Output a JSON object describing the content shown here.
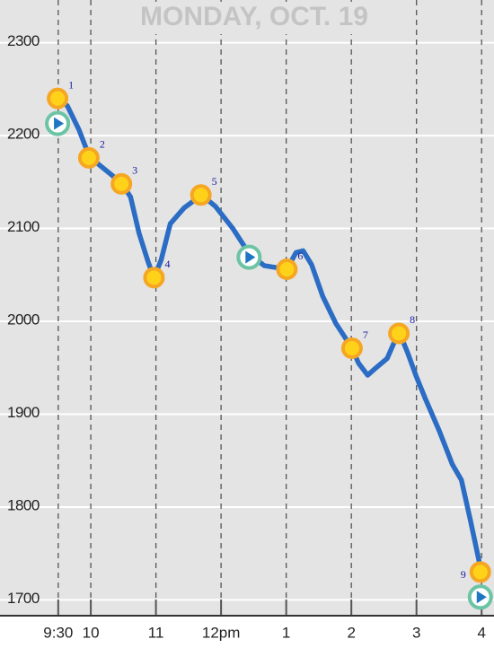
{
  "chart_data": {
    "type": "line",
    "title": "MONDAY, OCT. 19",
    "x": [
      9.5,
      9.64,
      9.82,
      9.98,
      10.19,
      10.47,
      10.61,
      10.74,
      10.88,
      10.97,
      11.08,
      11.22,
      11.43,
      11.7,
      11.91,
      12.18,
      12.43,
      12.66,
      13.01,
      13.15,
      13.26,
      13.39,
      13.56,
      13.76,
      14.01,
      14.11,
      14.25,
      14.38,
      14.55,
      14.73,
      14.86,
      15.0,
      15.14,
      15.35,
      15.55,
      15.69,
      15.83,
      15.96,
      15.99
    ],
    "series": [
      {
        "color": "#2b6cc4",
        "values": [
          2240,
          2232,
          2206,
          2177,
          2165,
          2149,
          2134,
          2095,
          2064,
          2047,
          2066,
          2105,
          2122,
          2136,
          2124,
          2100,
          2073,
          2060,
          2056,
          2074,
          2076,
          2061,
          2027,
          1998,
          1971,
          1955,
          1942,
          1950,
          1960,
          1989,
          1967,
          1940,
          1916,
          1882,
          1846,
          1829,
          1785,
          1742,
          1727
        ]
      }
    ],
    "markers": {
      "color": "#f5a623",
      "x": [
        9.49,
        9.97,
        10.47,
        10.97,
        11.69,
        13.01,
        14.01,
        14.73,
        15.98
      ],
      "values": [
        2240,
        2176,
        2148,
        2047,
        2136,
        2056,
        1971,
        1987,
        1730
      ],
      "labels": [
        "1",
        "2",
        "3",
        "4",
        "5",
        "6",
        "7",
        "8",
        "9"
      ]
    },
    "play_markers": {
      "color": "#6cc4a4",
      "x": [
        9.49,
        12.43,
        15.98
      ],
      "values": [
        2213,
        2069,
        1703
      ]
    },
    "xlim": [
      8.606,
      16.19
    ],
    "ylim": [
      1683,
      2346
    ],
    "xticks": [
      {
        "value": 9.5,
        "label": "9:30"
      },
      10,
      11,
      {
        "value": 12,
        "label": "12pm"
      },
      {
        "value": 13,
        "label": "1"
      },
      {
        "value": 14,
        "label": "2"
      },
      {
        "value": 15,
        "label": "3"
      },
      {
        "value": 16,
        "label": "4"
      }
    ],
    "yticks": [
      1700,
      1800,
      1900,
      2000,
      2100,
      2200,
      2300
    ],
    "grid": true
  }
}
